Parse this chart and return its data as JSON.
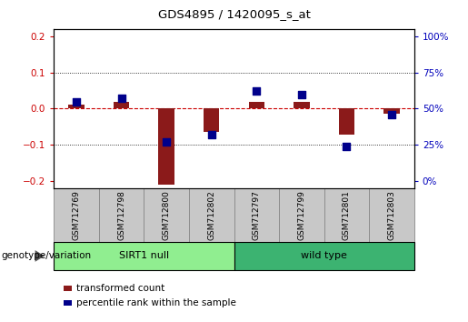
{
  "title": "GDS4895 / 1420095_s_at",
  "samples": [
    "GSM712769",
    "GSM712798",
    "GSM712800",
    "GSM712802",
    "GSM712797",
    "GSM712799",
    "GSM712801",
    "GSM712803"
  ],
  "transformed_count": [
    0.012,
    0.02,
    -0.21,
    -0.065,
    0.018,
    0.018,
    -0.072,
    -0.015
  ],
  "percentile_rank_pct": [
    55,
    57,
    27,
    32,
    62,
    60,
    24,
    46
  ],
  "ylim": [
    -0.22,
    0.22
  ],
  "ylim_pct": [
    0,
    100
  ],
  "yticks_left": [
    -0.2,
    -0.1,
    0.0,
    0.1,
    0.2
  ],
  "yticks_right": [
    0,
    25,
    50,
    75,
    100
  ],
  "groups": [
    {
      "label": "SIRT1 null",
      "start": 0,
      "end": 4,
      "color": "#90EE90"
    },
    {
      "label": "wild type",
      "start": 4,
      "end": 8,
      "color": "#3CB371"
    }
  ],
  "bar_color": "#8B1A1A",
  "dot_color": "#00008B",
  "bar_width": 0.35,
  "dot_size": 30,
  "zero_line_color": "#CC0000",
  "background_color": "white",
  "left_label_color": "#CC0000",
  "right_label_color": "#0000BB",
  "legend_items": [
    "transformed count",
    "percentile rank within the sample"
  ],
  "group_label": "genotype/variation",
  "sample_box_color": "#C8C8C8"
}
